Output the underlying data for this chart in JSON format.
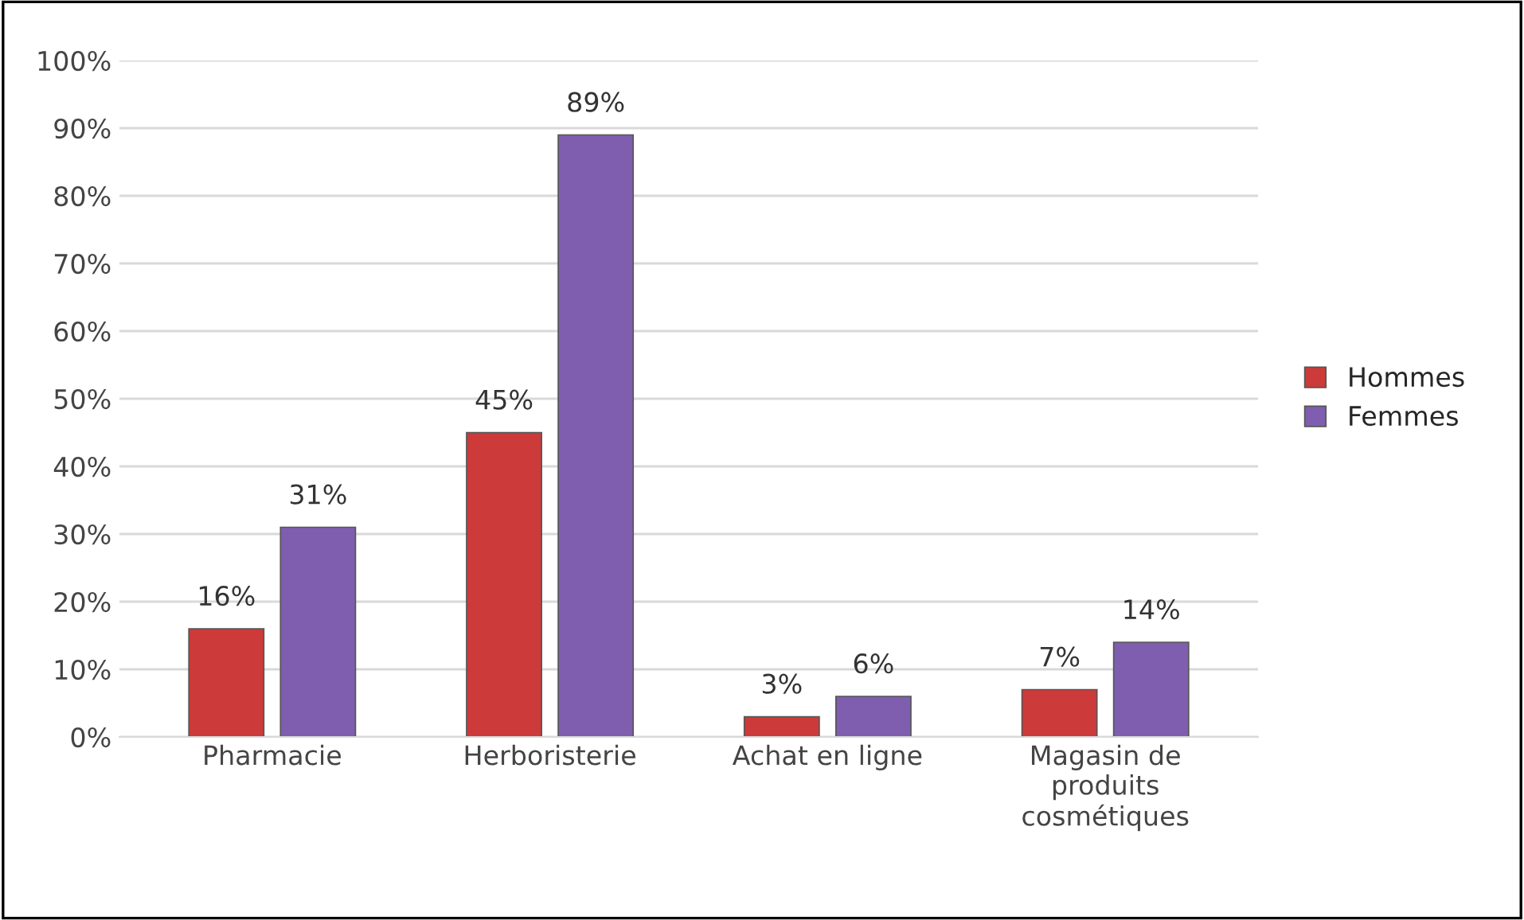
{
  "chart_data": {
    "type": "bar",
    "categories": [
      "Pharmacie",
      "Herboristerie",
      "Achat en ligne",
      "Magasin de\nproduits\ncosmétiques"
    ],
    "series": [
      {
        "name": "Hommes",
        "color": "#cc3a3a",
        "values": [
          16,
          45,
          3,
          7
        ],
        "value_labels": [
          "16%",
          "45%",
          "3%",
          "7%"
        ]
      },
      {
        "name": "Femmes",
        "color": "#7f5eb0",
        "values": [
          31,
          89,
          6,
          14
        ],
        "value_labels": [
          "31%",
          "89%",
          "6%",
          "14%"
        ]
      }
    ],
    "ylim": [
      0,
      100
    ],
    "yticks": [
      {
        "value": 0,
        "label": "0%"
      },
      {
        "value": 10,
        "label": "10%"
      },
      {
        "value": 20,
        "label": "20%"
      },
      {
        "value": 30,
        "label": "30%"
      },
      {
        "value": 40,
        "label": "40%"
      },
      {
        "value": 50,
        "label": "50%"
      },
      {
        "value": 60,
        "label": "60%"
      },
      {
        "value": 70,
        "label": "70%"
      },
      {
        "value": 80,
        "label": "80%"
      },
      {
        "value": 90,
        "label": "90%"
      },
      {
        "value": 100,
        "label": "100%"
      }
    ],
    "grid": "y",
    "legend": "right"
  }
}
